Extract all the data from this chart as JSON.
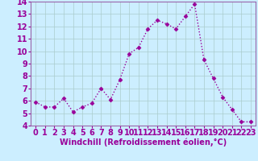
{
  "x": [
    0,
    1,
    2,
    3,
    4,
    5,
    6,
    7,
    8,
    9,
    10,
    11,
    12,
    13,
    14,
    15,
    16,
    17,
    18,
    19,
    20,
    21,
    22,
    23
  ],
  "y": [
    5.9,
    5.5,
    5.5,
    6.2,
    5.1,
    5.5,
    5.8,
    7.0,
    6.1,
    7.7,
    9.8,
    10.3,
    11.8,
    12.5,
    12.2,
    11.8,
    12.8,
    13.8,
    9.3,
    7.8,
    6.3,
    5.3,
    4.3,
    4.3
  ],
  "line_color": "#990099",
  "marker": "D",
  "markersize": 2.5,
  "bg_color": "#cceeff",
  "grid_color": "#aacccc",
  "xlabel": "Windchill (Refroidissement éolien,°C)",
  "xlim": [
    -0.5,
    23.5
  ],
  "ylim": [
    4,
    14
  ],
  "yticks": [
    4,
    5,
    6,
    7,
    8,
    9,
    10,
    11,
    12,
    13,
    14
  ],
  "xticks": [
    0,
    1,
    2,
    3,
    4,
    5,
    6,
    7,
    8,
    9,
    10,
    11,
    12,
    13,
    14,
    15,
    16,
    17,
    18,
    19,
    20,
    21,
    22,
    23
  ],
  "xlabel_fontsize": 7,
  "tick_fontsize": 7,
  "spine_color": "#9966aa",
  "linewidth": 1.0
}
